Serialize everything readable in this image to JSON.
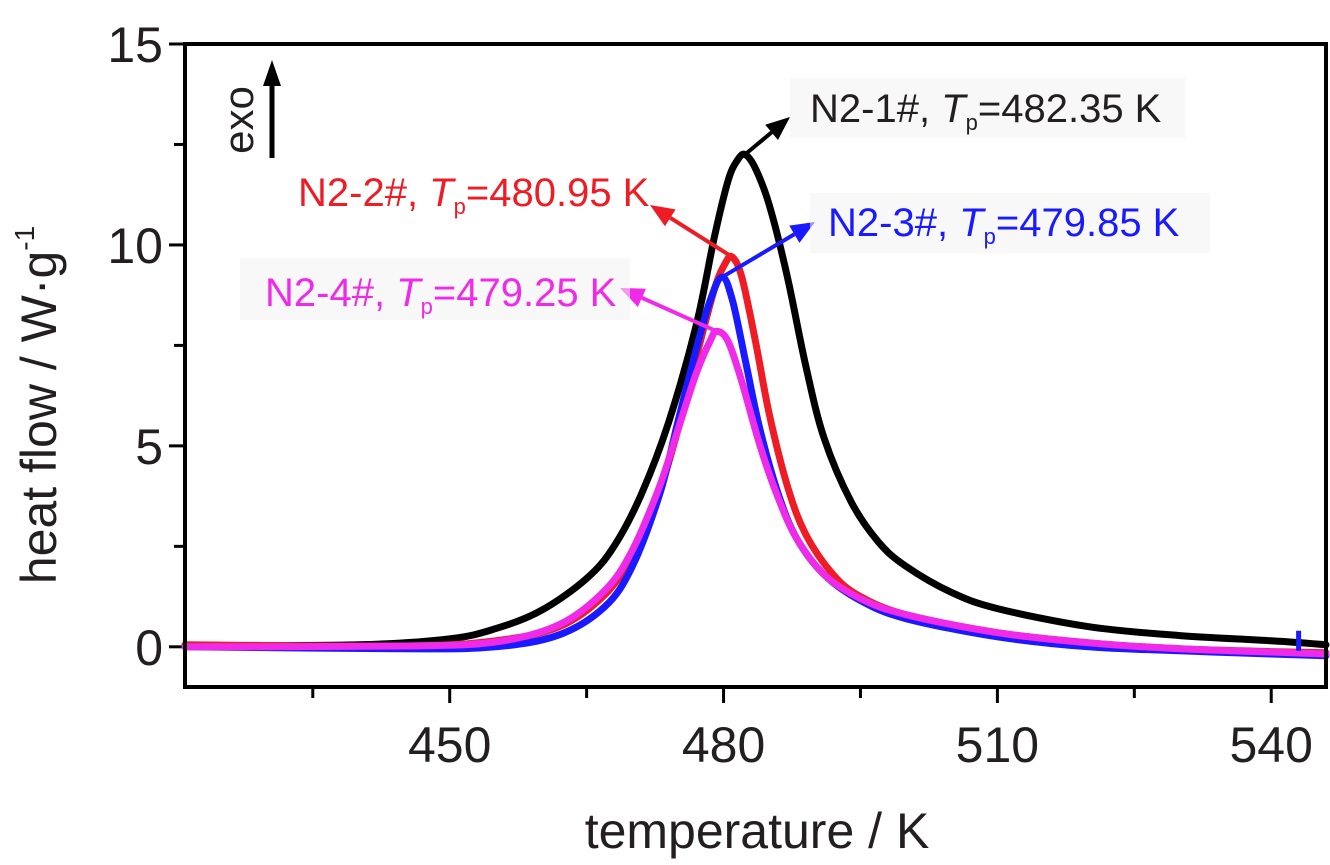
{
  "chart_data": {
    "type": "line",
    "xlabel": "temperature / K",
    "ylabel": "heat flow / W·g",
    "ylabel_superscript": "-1",
    "xlim": [
      421,
      546
    ],
    "ylim": [
      -1,
      15
    ],
    "xticks": [
      450,
      480,
      510,
      540
    ],
    "yticks": [
      0,
      5,
      10,
      15
    ],
    "grid": false,
    "exo_label": "exo",
    "series": [
      {
        "name": "N2-1#",
        "color": "#000000",
        "peak_label": "482.35 K",
        "points": [
          [
            421,
            0.02
          ],
          [
            440,
            0.05
          ],
          [
            450,
            0.2
          ],
          [
            455,
            0.45
          ],
          [
            460,
            0.9
          ],
          [
            465,
            1.7
          ],
          [
            468,
            2.5
          ],
          [
            471,
            3.8
          ],
          [
            474,
            5.6
          ],
          [
            477,
            8.0
          ],
          [
            479,
            10.2
          ],
          [
            480.5,
            11.6
          ],
          [
            481.5,
            12.1
          ],
          [
            482.35,
            12.25
          ],
          [
            483.5,
            11.9
          ],
          [
            485,
            11.0
          ],
          [
            487,
            9.2
          ],
          [
            489,
            7.0
          ],
          [
            491,
            5.2
          ],
          [
            494,
            3.6
          ],
          [
            497,
            2.6
          ],
          [
            500,
            2.0
          ],
          [
            505,
            1.35
          ],
          [
            510,
            0.95
          ],
          [
            520,
            0.5
          ],
          [
            530,
            0.28
          ],
          [
            540,
            0.15
          ],
          [
            546,
            0.05
          ]
        ]
      },
      {
        "name": "N2-2#",
        "color": "#ee1c24",
        "peak_label": "480.95 K",
        "points": [
          [
            421,
            0.05
          ],
          [
            445,
            0.02
          ],
          [
            455,
            0.15
          ],
          [
            462,
            0.5
          ],
          [
            467,
            1.3
          ],
          [
            470,
            2.3
          ],
          [
            473,
            3.9
          ],
          [
            475,
            5.4
          ],
          [
            477,
            7.2
          ],
          [
            479,
            8.9
          ],
          [
            480.2,
            9.55
          ],
          [
            480.95,
            9.7
          ],
          [
            482,
            9.2
          ],
          [
            483.5,
            7.6
          ],
          [
            485,
            5.8
          ],
          [
            487,
            4.0
          ],
          [
            489,
            2.8
          ],
          [
            492,
            1.8
          ],
          [
            495,
            1.25
          ],
          [
            500,
            0.8
          ],
          [
            510,
            0.35
          ],
          [
            520,
            0.1
          ],
          [
            530,
            -0.05
          ],
          [
            540,
            -0.12
          ],
          [
            546,
            -0.15
          ]
        ]
      },
      {
        "name": "N2-3#",
        "color": "#1a1aff",
        "peak_label": "479.85 K",
        "points": [
          [
            421,
            0.0
          ],
          [
            445,
            -0.05
          ],
          [
            455,
            0.0
          ],
          [
            462,
            0.3
          ],
          [
            467,
            1.0
          ],
          [
            470,
            2.0
          ],
          [
            473,
            3.8
          ],
          [
            475,
            5.6
          ],
          [
            477,
            7.4
          ],
          [
            478.5,
            8.6
          ],
          [
            479.85,
            9.2
          ],
          [
            481,
            8.6
          ],
          [
            482.5,
            7.0
          ],
          [
            484,
            5.4
          ],
          [
            486,
            3.8
          ],
          [
            488,
            2.7
          ],
          [
            491,
            1.8
          ],
          [
            495,
            1.15
          ],
          [
            500,
            0.7
          ],
          [
            510,
            0.25
          ],
          [
            520,
            0.0
          ],
          [
            530,
            -0.1
          ],
          [
            540,
            -0.18
          ],
          [
            546,
            -0.22
          ]
        ]
      },
      {
        "name": "N2-4#",
        "color": "#ef2ae8",
        "peak_label": "479.25 K",
        "points": [
          [
            421,
            0.0
          ],
          [
            445,
            0.02
          ],
          [
            455,
            0.12
          ],
          [
            462,
            0.55
          ],
          [
            467,
            1.4
          ],
          [
            470,
            2.4
          ],
          [
            473,
            4.0
          ],
          [
            475,
            5.4
          ],
          [
            477,
            6.8
          ],
          [
            478.5,
            7.6
          ],
          [
            479.25,
            7.85
          ],
          [
            480.5,
            7.6
          ],
          [
            482,
            6.6
          ],
          [
            484,
            5.0
          ],
          [
            486,
            3.7
          ],
          [
            488,
            2.7
          ],
          [
            491,
            1.8
          ],
          [
            495,
            1.2
          ],
          [
            500,
            0.8
          ],
          [
            510,
            0.35
          ],
          [
            520,
            0.1
          ],
          [
            530,
            -0.05
          ],
          [
            540,
            -0.13
          ],
          [
            546,
            -0.18
          ]
        ]
      }
    ],
    "annotations": [
      {
        "prefix": "N2-1#, ",
        "symbol": "T",
        "sub": "p",
        "suffix": "=482.35 K",
        "color": "#231f20"
      },
      {
        "prefix": "N2-2#, ",
        "symbol": "T",
        "sub": "p",
        "suffix": "=480.95 K",
        "color": "#ee1c24"
      },
      {
        "prefix": "N2-3#, ",
        "symbol": "T",
        "sub": "p",
        "suffix": "=479.85 K",
        "color": "#1a1aff"
      },
      {
        "prefix": "N2-4#, ",
        "symbol": "T",
        "sub": "p",
        "suffix": "=479.25 K",
        "color": "#ef2ae8"
      }
    ]
  }
}
